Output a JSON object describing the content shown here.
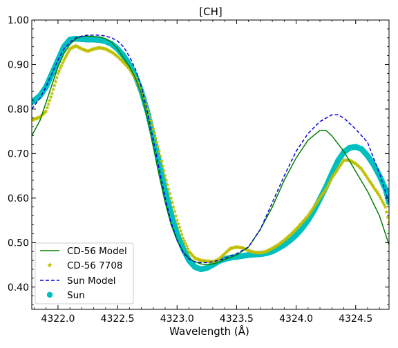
{
  "chart_data": {
    "type": "line",
    "title": "[CH]",
    "xlabel": "Wavelength (Å)",
    "ylabel": "",
    "xlim": [
      4321.78,
      4324.78
    ],
    "ylim": [
      0.35,
      1.0
    ],
    "x_ticks": [
      4322.0,
      4322.5,
      4323.0,
      4323.5,
      4324.0,
      4324.5
    ],
    "x_tick_labels": [
      "4322.0",
      "4322.5",
      "4323.0",
      "4323.5",
      "4324.0",
      "4324.5"
    ],
    "y_ticks": [
      0.4,
      0.5,
      0.6,
      0.7,
      0.8,
      0.9,
      1.0
    ],
    "y_tick_labels": [
      "0.40",
      "0.50",
      "0.60",
      "0.70",
      "0.80",
      "0.90",
      "1.00"
    ],
    "grid": false,
    "legend_position": "lower-left",
    "legend": [
      "CD-56 Model",
      "CD-56 7708",
      "Sun Model",
      "Sun"
    ],
    "series": [
      {
        "name": "CD-56 Model",
        "style": "solid-line",
        "color": "#008000",
        "x": [
          4321.78,
          4321.85,
          4321.9,
          4321.95,
          4322.0,
          4322.05,
          4322.1,
          4322.15,
          4322.2,
          4322.25,
          4322.3,
          4322.35,
          4322.4,
          4322.45,
          4322.5,
          4322.55,
          4322.6,
          4322.65,
          4322.7,
          4322.75,
          4322.8,
          4322.85,
          4322.9,
          4322.95,
          4323.0,
          4323.05,
          4323.1,
          4323.15,
          4323.2,
          4323.25,
          4323.3,
          4323.35,
          4323.4,
          4323.5,
          4323.6,
          4323.7,
          4323.8,
          4323.9,
          4324.0,
          4324.1,
          4324.2,
          4324.25,
          4324.3,
          4324.4,
          4324.5,
          4324.6,
          4324.7,
          4324.78
        ],
        "y": [
          0.74,
          0.775,
          0.815,
          0.855,
          0.895,
          0.925,
          0.945,
          0.958,
          0.963,
          0.964,
          0.963,
          0.962,
          0.958,
          0.95,
          0.935,
          0.915,
          0.895,
          0.87,
          0.835,
          0.78,
          0.715,
          0.65,
          0.59,
          0.54,
          0.505,
          0.48,
          0.465,
          0.457,
          0.452,
          0.45,
          0.452,
          0.456,
          0.462,
          0.472,
          0.49,
          0.53,
          0.58,
          0.64,
          0.69,
          0.73,
          0.752,
          0.752,
          0.74,
          0.705,
          0.66,
          0.615,
          0.56,
          0.495
        ]
      },
      {
        "name": "CD-56 7708",
        "style": "star-markers",
        "color": "#bfbf00",
        "x": [
          4321.78,
          4321.85,
          4321.9,
          4321.95,
          4322.0,
          4322.05,
          4322.1,
          4322.15,
          4322.2,
          4322.25,
          4322.3,
          4322.35,
          4322.4,
          4322.45,
          4322.5,
          4322.55,
          4322.6,
          4322.65,
          4322.7,
          4322.75,
          4322.8,
          4322.85,
          4322.9,
          4322.95,
          4323.0,
          4323.05,
          4323.1,
          4323.15,
          4323.2,
          4323.25,
          4323.3,
          4323.35,
          4323.4,
          4323.45,
          4323.5,
          4323.55,
          4323.6,
          4323.65,
          4323.7,
          4323.75,
          4323.8,
          4323.85,
          4323.9,
          4323.95,
          4324.0,
          4324.05,
          4324.1,
          4324.15,
          4324.2,
          4324.25,
          4324.3,
          4324.35,
          4324.4,
          4324.45,
          4324.5,
          4324.55,
          4324.6,
          4324.65,
          4324.7,
          4324.75,
          4324.78
        ],
        "y": [
          0.775,
          0.782,
          0.795,
          0.835,
          0.88,
          0.91,
          0.935,
          0.942,
          0.935,
          0.93,
          0.935,
          0.938,
          0.935,
          0.928,
          0.918,
          0.905,
          0.89,
          0.87,
          0.84,
          0.8,
          0.755,
          0.705,
          0.65,
          0.6,
          0.55,
          0.51,
          0.48,
          0.465,
          0.46,
          0.458,
          0.457,
          0.462,
          0.475,
          0.487,
          0.49,
          0.488,
          0.482,
          0.478,
          0.477,
          0.48,
          0.487,
          0.495,
          0.505,
          0.517,
          0.53,
          0.545,
          0.56,
          0.58,
          0.6,
          0.62,
          0.645,
          0.665,
          0.685,
          0.685,
          0.677,
          0.665,
          0.645,
          0.625,
          0.605,
          0.58,
          0.545
        ]
      },
      {
        "name": "Sun Model",
        "style": "dashed-line",
        "color": "#0000dd",
        "x": [
          4321.78,
          4321.85,
          4321.9,
          4321.95,
          4322.0,
          4322.05,
          4322.1,
          4322.15,
          4322.2,
          4322.25,
          4322.3,
          4322.35,
          4322.4,
          4322.45,
          4322.5,
          4322.55,
          4322.6,
          4322.65,
          4322.7,
          4322.75,
          4322.8,
          4322.85,
          4322.9,
          4322.95,
          4323.0,
          4323.05,
          4323.1,
          4323.15,
          4323.2,
          4323.25,
          4323.3,
          4323.35,
          4323.4,
          4323.5,
          4323.6,
          4323.7,
          4323.8,
          4323.9,
          4324.0,
          4324.1,
          4324.2,
          4324.3,
          4324.35,
          4324.4,
          4324.5,
          4324.6,
          4324.7,
          4324.78
        ],
        "y": [
          0.8,
          0.825,
          0.85,
          0.88,
          0.91,
          0.935,
          0.95,
          0.96,
          0.964,
          0.966,
          0.966,
          0.966,
          0.964,
          0.96,
          0.953,
          0.94,
          0.918,
          0.89,
          0.85,
          0.795,
          0.73,
          0.665,
          0.6,
          0.545,
          0.505,
          0.478,
          0.463,
          0.457,
          0.455,
          0.455,
          0.457,
          0.46,
          0.465,
          0.475,
          0.49,
          0.53,
          0.59,
          0.65,
          0.705,
          0.745,
          0.772,
          0.787,
          0.787,
          0.78,
          0.755,
          0.725,
          0.655,
          0.59
        ]
      },
      {
        "name": "Sun",
        "style": "circle-markers",
        "color": "#00bfbf",
        "x": [
          4321.78,
          4321.85,
          4321.9,
          4321.95,
          4322.0,
          4322.05,
          4322.1,
          4322.15,
          4322.2,
          4322.25,
          4322.3,
          4322.35,
          4322.4,
          4322.45,
          4322.5,
          4322.55,
          4322.6,
          4322.65,
          4322.7,
          4322.75,
          4322.8,
          4322.85,
          4322.9,
          4322.95,
          4323.0,
          4323.05,
          4323.1,
          4323.15,
          4323.2,
          4323.25,
          4323.3,
          4323.35,
          4323.4,
          4323.45,
          4323.5,
          4323.55,
          4323.6,
          4323.65,
          4323.7,
          4323.75,
          4323.8,
          4323.85,
          4323.9,
          4323.95,
          4324.0,
          4324.05,
          4324.1,
          4324.15,
          4324.2,
          4324.25,
          4324.3,
          4324.35,
          4324.4,
          4324.45,
          4324.5,
          4324.55,
          4324.6,
          4324.65,
          4324.7,
          4324.75,
          4324.78
        ],
        "y": [
          0.815,
          0.83,
          0.85,
          0.88,
          0.91,
          0.94,
          0.956,
          0.958,
          0.957,
          0.956,
          0.956,
          0.955,
          0.952,
          0.946,
          0.935,
          0.92,
          0.9,
          0.875,
          0.84,
          0.795,
          0.74,
          0.68,
          0.62,
          0.565,
          0.52,
          0.487,
          0.46,
          0.445,
          0.44,
          0.443,
          0.45,
          0.458,
          0.463,
          0.466,
          0.468,
          0.47,
          0.472,
          0.473,
          0.474,
          0.476,
          0.48,
          0.487,
          0.495,
          0.505,
          0.517,
          0.532,
          0.55,
          0.572,
          0.598,
          0.625,
          0.655,
          0.683,
          0.703,
          0.713,
          0.715,
          0.71,
          0.695,
          0.675,
          0.65,
          0.62,
          0.59
        ]
      }
    ]
  }
}
